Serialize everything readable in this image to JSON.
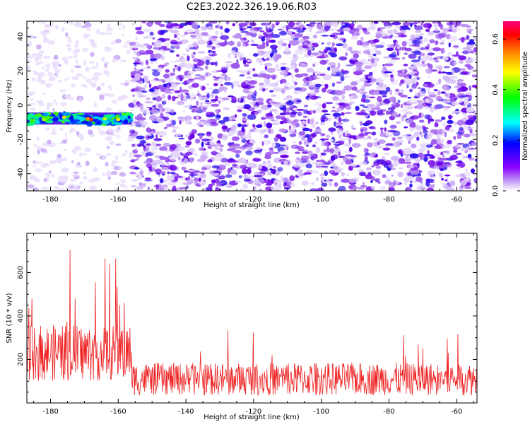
{
  "title": "C2E3.2022.326.19.06.R03",
  "chart_data": [
    {
      "type": "heatmap",
      "xlabel": "Height of straight line (km)",
      "ylabel": "Frequency (Hz)",
      "xlim": [
        -187,
        -54
      ],
      "ylim": [
        -50,
        49
      ],
      "xticks": [
        -180,
        -160,
        -140,
        -120,
        -100,
        -80,
        -60
      ],
      "yticks": [
        -40,
        -20,
        0,
        20,
        40
      ],
      "colorbar": {
        "label": "Normalized spectral amplitude",
        "range": [
          0,
          0.67
        ],
        "ticks": [
          0.0,
          0.2,
          0.4,
          0.6
        ],
        "colors": [
          "#ffffff",
          "#c9a9f5",
          "#8b00ff",
          "#0000ff",
          "#00ffff",
          "#00ff00",
          "#ffff00",
          "#ff8000",
          "#ff0000",
          "#ff0080"
        ]
      },
      "features": [
        {
          "x_range": [
            -187,
            -156
          ],
          "freq": -8,
          "amplitude": 0.45,
          "note": "strong narrow band"
        },
        {
          "x_range": [
            -187,
            -156
          ],
          "amplitude": 0.03,
          "note": "sparse faint background"
        },
        {
          "x_range": [
            -156,
            -54
          ],
          "amplitude": 0.12,
          "note": "dense speckled noise"
        }
      ]
    },
    {
      "type": "line",
      "xlabel": "Height of straight line (km)",
      "ylabel": "SNR (10 * v/v)",
      "xlim": [
        -187,
        -54
      ],
      "ylim": [
        0,
        780
      ],
      "xticks": [
        -180,
        -160,
        -140,
        -120,
        -100,
        -80,
        -60
      ],
      "yticks": [
        200,
        400,
        600
      ],
      "color": "#ee2222",
      "segments": [
        {
          "x_range": [
            -187,
            -156
          ],
          "mean": 230,
          "max": 770,
          "min": 20
        },
        {
          "x_range": [
            -156,
            -54
          ],
          "mean": 110,
          "max": 440,
          "min": 15
        }
      ]
    }
  ]
}
